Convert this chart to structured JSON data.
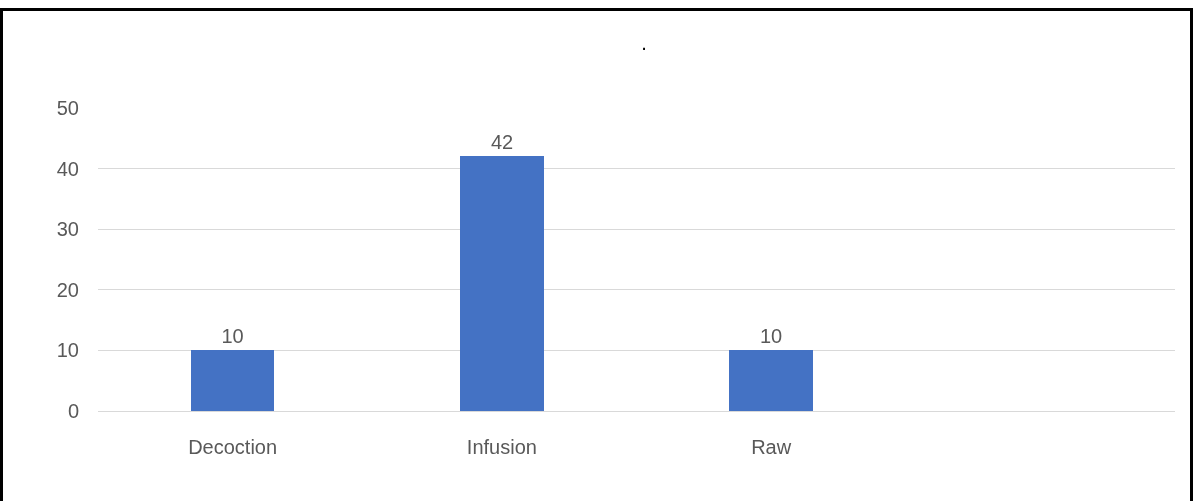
{
  "chart_data": {
    "type": "bar",
    "title": ".",
    "categories": [
      "Decoction",
      "Infusion",
      "Raw",
      null
    ],
    "values": [
      10,
      42,
      10,
      null
    ],
    "color": "#4472c4",
    "ylim": [
      0,
      50
    ],
    "yticks": [
      0,
      10,
      20,
      30,
      40,
      50
    ],
    "grid": "y",
    "data_labels": true,
    "legend": false
  }
}
